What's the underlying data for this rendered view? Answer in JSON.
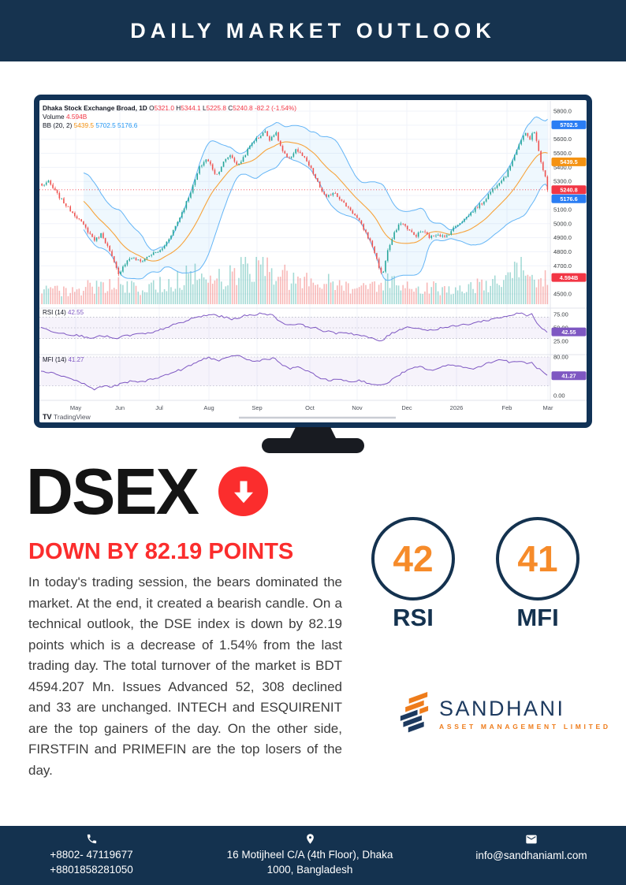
{
  "header": {
    "title": "DAILY MARKET OUTLOOK"
  },
  "headline": {
    "symbol": "DSEX",
    "subtitle": "DOWN BY 82.19 POINTS"
  },
  "body_text": "In today's trading session, the bears dominated the market. At the end, it created a bearish candle. On a technical outlook, the DSE index is down by 82.19 points which is a decrease of 1.54% from the last trading day. The total turnover of the market is BDT 4594.207 Mn. Issues Advanced 52, 308 declined and 33 are unchanged. INTECH and ESQUIRENIT are the top gainers of the day. On the other side, FIRSTFIN and PRIMEFIN are the top losers of the day.",
  "gauges": [
    {
      "value": "42",
      "label": "RSI"
    },
    {
      "value": "41",
      "label": "MFI"
    }
  ],
  "brand": {
    "name": "SANDHANI",
    "tagline": "ASSET MANAGEMENT LIMITED"
  },
  "footer": {
    "phones": [
      "+8802- 47119677",
      "+8801858281050"
    ],
    "address_lines": [
      "16 Motijheel C/A (4th Floor), Dhaka",
      "1000, Bangladesh"
    ],
    "email": "info@sandhaniaml.com"
  },
  "colors": {
    "navy": "#14324f",
    "red_accent": "#fb2d2d",
    "orange_accent": "#f68b2a",
    "monitor_frame": "#113256",
    "stand": "#181b21"
  },
  "chart_data": {
    "type": "candlestick",
    "source_logo": "TradingView",
    "legend": {
      "title": "Dhaka Stock Exchange Broad, 1D",
      "ohlc": [
        [
          "O",
          "5321.0"
        ],
        [
          "H",
          "5344.1"
        ],
        [
          "L",
          "5225.8"
        ],
        [
          "C",
          "5240.8"
        ]
      ],
      "change": "-82.2 (-1.54%)",
      "volume_label": "Volume",
      "volume_value": "4.594B",
      "bb_label": "BB (20, 2)",
      "bb_values": [
        "5439.5",
        "5702.5",
        "5176.6"
      ],
      "bb_value_colors": [
        "#f59211",
        "#2196f3",
        "#2196f3"
      ]
    },
    "last": {
      "open": 5321.0,
      "high": 5344.1,
      "low": 5225.8,
      "close": 5240.8,
      "change": -82.2,
      "change_pct": -1.54
    },
    "bollinger": {
      "period": 20,
      "stdev": 2,
      "basis": 5439.5,
      "upper": 5702.5,
      "lower": 5176.6
    },
    "x_axis": {
      "labels": [
        "May",
        "Jun",
        "Jul",
        "Aug",
        "Sep",
        "Oct",
        "Nov",
        "Dec",
        "2026",
        "Feb",
        "Mar"
      ],
      "positions": [
        46,
        102,
        152,
        215,
        276,
        343,
        403,
        466,
        529,
        593,
        645
      ]
    },
    "price_axis": {
      "ticks": [
        5800,
        5600,
        5500,
        5400,
        5300,
        5100,
        5000,
        4900,
        4800,
        4700,
        4500
      ],
      "range": [
        4500,
        5800
      ]
    },
    "close_keypoints": [
      [
        0,
        5270
      ],
      [
        0.012,
        5300
      ],
      [
        0.03,
        5210
      ],
      [
        0.05,
        5120
      ],
      [
        0.071,
        5040
      ],
      [
        0.09,
        4950
      ],
      [
        0.105,
        4880
      ],
      [
        0.118,
        4930
      ],
      [
        0.132,
        4820
      ],
      [
        0.144,
        4710
      ],
      [
        0.152,
        4630
      ],
      [
        0.158,
        4690
      ],
      [
        0.175,
        4760
      ],
      [
        0.195,
        4730
      ],
      [
        0.215,
        4780
      ],
      [
        0.236,
        4810
      ],
      [
        0.252,
        4900
      ],
      [
        0.268,
        5010
      ],
      [
        0.283,
        5130
      ],
      [
        0.298,
        5260
      ],
      [
        0.312,
        5400
      ],
      [
        0.325,
        5460
      ],
      [
        0.333,
        5420
      ],
      [
        0.345,
        5340
      ],
      [
        0.358,
        5430
      ],
      [
        0.372,
        5490
      ],
      [
        0.388,
        5410
      ],
      [
        0.403,
        5500
      ],
      [
        0.418,
        5590
      ],
      [
        0.428,
        5610
      ],
      [
        0.44,
        5660
      ],
      [
        0.45,
        5600
      ],
      [
        0.462,
        5650
      ],
      [
        0.475,
        5520
      ],
      [
        0.488,
        5450
      ],
      [
        0.502,
        5530
      ],
      [
        0.518,
        5470
      ],
      [
        0.532,
        5390
      ],
      [
        0.548,
        5270
      ],
      [
        0.562,
        5180
      ],
      [
        0.578,
        5230
      ],
      [
        0.595,
        5150
      ],
      [
        0.61,
        5100
      ],
      [
        0.625,
        5030
      ],
      [
        0.64,
        4940
      ],
      [
        0.655,
        4830
      ],
      [
        0.667,
        4690
      ],
      [
        0.673,
        4620
      ],
      [
        0.683,
        4800
      ],
      [
        0.697,
        4930
      ],
      [
        0.71,
        5010
      ],
      [
        0.722,
        4970
      ],
      [
        0.738,
        4910
      ],
      [
        0.752,
        4950
      ],
      [
        0.768,
        4900
      ],
      [
        0.782,
        4930
      ],
      [
        0.797,
        4900
      ],
      [
        0.82,
        4990
      ],
      [
        0.838,
        5040
      ],
      [
        0.855,
        5100
      ],
      [
        0.872,
        5150
      ],
      [
        0.888,
        5230
      ],
      [
        0.905,
        5300
      ],
      [
        0.92,
        5350
      ],
      [
        0.933,
        5480
      ],
      [
        0.947,
        5590
      ],
      [
        0.957,
        5640
      ],
      [
        0.965,
        5600
      ],
      [
        0.972,
        5670
      ],
      [
        0.98,
        5560
      ],
      [
        0.988,
        5430
      ],
      [
        0.994,
        5330
      ],
      [
        1,
        5240.8
      ]
    ],
    "volume_keypoints": [
      [
        0,
        0.35
      ],
      [
        0.05,
        0.3
      ],
      [
        0.09,
        0.42
      ],
      [
        0.13,
        0.5
      ],
      [
        0.16,
        0.45
      ],
      [
        0.2,
        0.32
      ],
      [
        0.24,
        0.5
      ],
      [
        0.27,
        0.6
      ],
      [
        0.3,
        0.72
      ],
      [
        0.33,
        0.65
      ],
      [
        0.36,
        0.6
      ],
      [
        0.39,
        0.82
      ],
      [
        0.42,
        0.95
      ],
      [
        0.44,
        1
      ],
      [
        0.46,
        0.85
      ],
      [
        0.49,
        0.62
      ],
      [
        0.52,
        0.55
      ],
      [
        0.55,
        0.58
      ],
      [
        0.58,
        0.48
      ],
      [
        0.62,
        0.42
      ],
      [
        0.655,
        0.5
      ],
      [
        0.68,
        0.55
      ],
      [
        0.7,
        0.52
      ],
      [
        0.73,
        0.45
      ],
      [
        0.76,
        0.42
      ],
      [
        0.79,
        0.38
      ],
      [
        0.82,
        0.35
      ],
      [
        0.85,
        0.42
      ],
      [
        0.88,
        0.48
      ],
      [
        0.9,
        0.52
      ],
      [
        0.92,
        0.6
      ],
      [
        0.94,
        0.78
      ],
      [
        0.955,
        0.88
      ],
      [
        0.97,
        0.6
      ],
      [
        0.985,
        0.68
      ],
      [
        1,
        0.55
      ]
    ],
    "rsi": {
      "label": "RSI (14)",
      "value": 42.55,
      "ticks": [
        75,
        50,
        25
      ],
      "bands": [
        70,
        50,
        30
      ],
      "keypoints": [
        [
          0,
          50
        ],
        [
          0.03,
          42
        ],
        [
          0.07,
          36
        ],
        [
          0.1,
          32
        ],
        [
          0.13,
          35
        ],
        [
          0.145,
          28
        ],
        [
          0.16,
          34
        ],
        [
          0.19,
          38
        ],
        [
          0.22,
          40
        ],
        [
          0.25,
          52
        ],
        [
          0.28,
          60
        ],
        [
          0.3,
          68
        ],
        [
          0.32,
          72
        ],
        [
          0.34,
          75
        ],
        [
          0.36,
          70
        ],
        [
          0.38,
          66
        ],
        [
          0.4,
          72
        ],
        [
          0.42,
          74
        ],
        [
          0.44,
          78
        ],
        [
          0.46,
          72
        ],
        [
          0.475,
          60
        ],
        [
          0.49,
          55
        ],
        [
          0.5,
          58
        ],
        [
          0.52,
          54
        ],
        [
          0.54,
          50
        ],
        [
          0.56,
          44
        ],
        [
          0.58,
          40
        ],
        [
          0.6,
          42
        ],
        [
          0.62,
          38
        ],
        [
          0.64,
          34
        ],
        [
          0.66,
          28
        ],
        [
          0.672,
          25
        ],
        [
          0.69,
          38
        ],
        [
          0.71,
          48
        ],
        [
          0.73,
          52
        ],
        [
          0.75,
          48
        ],
        [
          0.77,
          45
        ],
        [
          0.79,
          50
        ],
        [
          0.81,
          52
        ],
        [
          0.83,
          55
        ],
        [
          0.85,
          58
        ],
        [
          0.87,
          62
        ],
        [
          0.89,
          66
        ],
        [
          0.91,
          70
        ],
        [
          0.93,
          74
        ],
        [
          0.95,
          78
        ],
        [
          0.96,
          72
        ],
        [
          0.97,
          75
        ],
        [
          0.98,
          60
        ],
        [
          0.99,
          50
        ],
        [
          1,
          42.55
        ]
      ]
    },
    "mfi": {
      "label": "MFI (14)",
      "value": 41.27,
      "ticks": [
        80,
        0
      ],
      "bands": [
        80,
        20
      ],
      "keypoints": [
        [
          0,
          52
        ],
        [
          0.03,
          45
        ],
        [
          0.06,
          35
        ],
        [
          0.09,
          22
        ],
        [
          0.105,
          12
        ],
        [
          0.12,
          20
        ],
        [
          0.14,
          18
        ],
        [
          0.16,
          25
        ],
        [
          0.18,
          30
        ],
        [
          0.2,
          28
        ],
        [
          0.22,
          35
        ],
        [
          0.24,
          40
        ],
        [
          0.26,
          48
        ],
        [
          0.28,
          55
        ],
        [
          0.3,
          65
        ],
        [
          0.32,
          75
        ],
        [
          0.33,
          80
        ],
        [
          0.35,
          72
        ],
        [
          0.37,
          78
        ],
        [
          0.385,
          85
        ],
        [
          0.4,
          78
        ],
        [
          0.42,
          70
        ],
        [
          0.44,
          75
        ],
        [
          0.46,
          78
        ],
        [
          0.475,
          65
        ],
        [
          0.49,
          55
        ],
        [
          0.51,
          60
        ],
        [
          0.53,
          48
        ],
        [
          0.55,
          38
        ],
        [
          0.57,
          30
        ],
        [
          0.59,
          35
        ],
        [
          0.61,
          28
        ],
        [
          0.63,
          32
        ],
        [
          0.65,
          25
        ],
        [
          0.67,
          20
        ],
        [
          0.69,
          30
        ],
        [
          0.71,
          45
        ],
        [
          0.73,
          55
        ],
        [
          0.75,
          60
        ],
        [
          0.77,
          52
        ],
        [
          0.79,
          58
        ],
        [
          0.81,
          65
        ],
        [
          0.83,
          60
        ],
        [
          0.85,
          55
        ],
        [
          0.87,
          62
        ],
        [
          0.89,
          70
        ],
        [
          0.91,
          75
        ],
        [
          0.93,
          68
        ],
        [
          0.95,
          72
        ],
        [
          0.96,
          65
        ],
        [
          0.97,
          68
        ],
        [
          0.98,
          58
        ],
        [
          0.99,
          50
        ],
        [
          1,
          41.27
        ]
      ]
    },
    "badges": [
      {
        "text": "5702.5",
        "panel": "price",
        "value": 5702.5,
        "color": "#2a7df4"
      },
      {
        "text": "5439.5",
        "panel": "price",
        "value": 5439.5,
        "color": "#f59211"
      },
      {
        "text": "5240.8",
        "panel": "price",
        "value": 5240.8,
        "color": "#f23645"
      },
      {
        "text": "5176.6",
        "panel": "price",
        "value": 5176.6,
        "color": "#2a7df4"
      },
      {
        "text": "4.594B",
        "panel": "price",
        "value": 4617,
        "color": "#f23645"
      },
      {
        "text": "42.55",
        "panel": "rsi",
        "value": 42.55,
        "color": "#7e57c2"
      },
      {
        "text": "41.27",
        "panel": "mfi",
        "value": 41.27,
        "color": "#7e57c2"
      }
    ],
    "colors": {
      "up": "#26a69a",
      "down": "#ef5350",
      "bb_line": "#64b5f6",
      "bb_basis": "#f7a33b",
      "indicator": "#7e57c2",
      "last_price_line": "#f23645",
      "grid": "#f0f3fa"
    }
  }
}
